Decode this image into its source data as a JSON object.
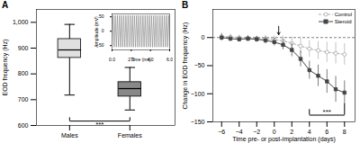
{
  "chart_data": [
    {
      "type": "box",
      "title": "A",
      "categories": [
        "Males",
        "Females"
      ],
      "boxes": [
        {
          "median": 893,
          "q1": 862,
          "q3": 935,
          "whisker_low": 718,
          "whisker_high": 992
        },
        {
          "median": 743,
          "q1": 712,
          "q3": 768,
          "whisker_low": 660,
          "whisker_high": 825
        }
      ],
      "colors": [
        "#e0e0e0",
        "#888888"
      ],
      "ylabel": "EOD frequency (Hz)",
      "ylim": [
        600,
        1050
      ],
      "yticks": [
        600,
        700,
        800,
        900,
        1000
      ],
      "bracket": {
        "from": "Males",
        "to": "Females",
        "y": 617,
        "y_ends": [
          630,
          630
        ],
        "label": "***"
      }
    },
    {
      "type": "line",
      "xlabel": "Time (ms)",
      "ylabel": "Amplitude (mV)",
      "color": "gray",
      "x": [
        0,
        0.111,
        0.222,
        0.333,
        0.444,
        0.556,
        0.667,
        0.778,
        0.889,
        1,
        1.111,
        1.222,
        1.333,
        1.444,
        1.556,
        1.667,
        1.778,
        1.889,
        2,
        2.111,
        2.222,
        2.333,
        2.444,
        2.556,
        2.667,
        2.778,
        2.889,
        3,
        3.111,
        3.222,
        3.333,
        3.444,
        3.556,
        3.667,
        3.778,
        3.889,
        4,
        4.111,
        4.222,
        4.333,
        4.444,
        4.556,
        4.667,
        4.778,
        4.889,
        5,
        5.111,
        5.222,
        5.333,
        5.444,
        5.556,
        5.667,
        5.778,
        5.889,
        6
      ],
      "values": [
        -55,
        55,
        -55,
        55,
        -55,
        55,
        -55,
        55,
        -55,
        55,
        -55,
        55,
        -55,
        55,
        -55,
        55,
        -55,
        55,
        -55,
        55,
        -55,
        55,
        -55,
        55,
        -55,
        55,
        -55,
        55,
        -55,
        55,
        -55,
        55,
        -55,
        55,
        -55,
        55,
        -55,
        55,
        -55,
        55,
        -55,
        55,
        -55,
        55,
        -55,
        55,
        -55,
        55,
        -55,
        55,
        -55,
        55,
        -55,
        55,
        -55
      ],
      "xlim": [
        0,
        6
      ],
      "xticks": [
        0,
        2,
        4,
        6
      ],
      "ylim": [
        -65,
        60
      ],
      "yticks": [
        -50,
        0,
        50
      ]
    },
    {
      "type": "line",
      "title": "B",
      "x": [
        -6,
        -5,
        -4,
        -3,
        -2,
        -1,
        0,
        1,
        2,
        3,
        4,
        5,
        6,
        7,
        8
      ],
      "series": [
        {
          "name": "Control",
          "color": "#aaaaaa",
          "marker": "circle",
          "line_style": "dashed",
          "values": [
            2,
            1,
            0,
            -1,
            -2,
            -2,
            -4,
            -6,
            -10,
            -15,
            -20,
            -23,
            -26,
            -28,
            -30
          ],
          "errors": [
            6,
            5,
            4,
            5,
            5,
            6,
            7,
            9,
            11,
            13,
            15,
            16,
            18,
            19,
            19
          ]
        },
        {
          "name": "Steroid",
          "color": "#444444",
          "marker": "square",
          "line_style": "solid",
          "values": [
            0,
            -2,
            -3,
            -2,
            -3,
            -5,
            -8,
            -13,
            -22,
            -38,
            -58,
            -68,
            -78,
            -92,
            -98
          ],
          "errors": [
            6,
            5,
            5,
            5,
            5,
            6,
            7,
            9,
            12,
            14,
            16,
            19,
            21,
            23,
            21
          ]
        }
      ],
      "xlabel": "Time pre- or post-implantation (days)",
      "ylabel": "Change in EOD frequency (Hz)",
      "xlim": [
        -7,
        9.2
      ],
      "xticks": [
        -6,
        -4,
        -2,
        0,
        2,
        4,
        6,
        8
      ],
      "ylim": [
        -150,
        50
      ],
      "yticks": [
        0,
        -50,
        -100,
        -150
      ],
      "legend": "upper right",
      "arrow": {
        "x": 0.5,
        "from": 20,
        "to": 5
      },
      "bracket": {
        "x": [
          4,
          8
        ],
        "y": -138,
        "y_ends": [
          -128,
          -118
        ],
        "label": "***"
      }
    }
  ]
}
